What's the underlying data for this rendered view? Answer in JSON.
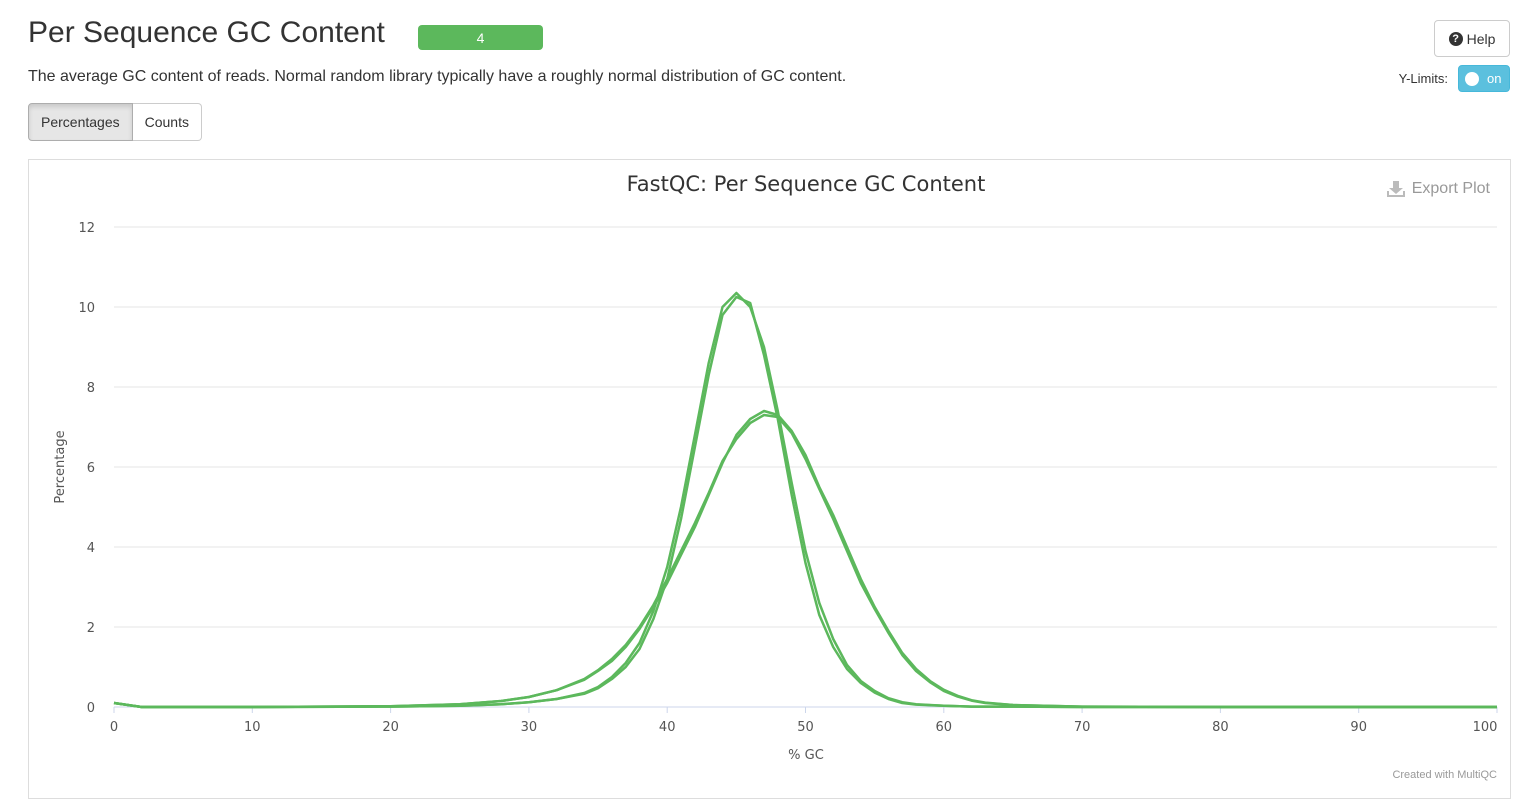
{
  "header": {
    "title": "Per Sequence GC Content",
    "badge": "4",
    "help_label": "Help",
    "description": "The average GC content of reads. Normal random library typically have a roughly normal distribution of GC content.",
    "ylimits_label": "Y-Limits:",
    "ylimits_toggle": "on"
  },
  "tabs": [
    {
      "label": "Percentages",
      "active": true
    },
    {
      "label": "Counts",
      "active": false
    }
  ],
  "plot": {
    "export_label": "Export Plot",
    "credit": "Created with MultiQC"
  },
  "colors": {
    "series": "#5cb85c",
    "badge": "#5cb85c",
    "toggle": "#5bc0de"
  },
  "chart_data": {
    "type": "line",
    "title": "FastQC: Per Sequence GC Content",
    "xlabel": "% GC",
    "ylabel": "Percentage",
    "xlim": [
      0,
      100
    ],
    "ylim": [
      0,
      12
    ],
    "xticks": [
      0,
      10,
      20,
      30,
      40,
      50,
      60,
      70,
      80,
      90,
      100
    ],
    "yticks": [
      0,
      2,
      4,
      6,
      8,
      10,
      12
    ],
    "grid": true,
    "legend": "none",
    "series": [
      {
        "x": [
          0,
          2,
          10,
          20,
          25,
          28,
          30,
          32,
          34,
          35,
          36,
          37,
          38,
          39,
          40,
          41,
          42,
          43,
          44,
          45,
          46,
          47,
          48,
          49,
          50,
          51,
          52,
          53,
          54,
          55,
          56,
          57,
          58,
          60,
          62,
          65,
          70,
          80,
          100
        ],
        "y": [
          0.1,
          0,
          0,
          0.01,
          0.03,
          0.07,
          0.12,
          0.2,
          0.35,
          0.5,
          0.75,
          1.1,
          1.6,
          2.4,
          3.5,
          5.0,
          6.8,
          8.6,
          10.0,
          10.35,
          10.0,
          9.0,
          7.4,
          5.6,
          3.9,
          2.6,
          1.7,
          1.05,
          0.65,
          0.4,
          0.22,
          0.12,
          0.07,
          0.03,
          0.01,
          0.01,
          0,
          0,
          0
        ]
      },
      {
        "x": [
          0,
          2,
          10,
          20,
          25,
          28,
          30,
          32,
          34,
          35,
          36,
          37,
          38,
          39,
          40,
          41,
          42,
          43,
          44,
          45,
          46,
          47,
          48,
          49,
          50,
          51,
          52,
          53,
          54,
          55,
          56,
          57,
          58,
          60,
          62,
          65,
          70,
          80,
          100
        ],
        "y": [
          0.1,
          0,
          0,
          0.01,
          0.03,
          0.07,
          0.12,
          0.2,
          0.33,
          0.47,
          0.7,
          1.0,
          1.45,
          2.2,
          3.2,
          4.7,
          6.5,
          8.3,
          9.8,
          10.25,
          10.1,
          8.8,
          7.2,
          5.3,
          3.6,
          2.3,
          1.5,
          0.95,
          0.6,
          0.36,
          0.2,
          0.1,
          0.06,
          0.03,
          0.01,
          0.01,
          0,
          0,
          0
        ]
      },
      {
        "x": [
          0,
          2,
          10,
          20,
          25,
          28,
          30,
          32,
          34,
          35,
          36,
          37,
          38,
          39,
          40,
          41,
          42,
          43,
          44,
          45,
          46,
          47,
          48,
          49,
          50,
          51,
          52,
          53,
          54,
          55,
          56,
          57,
          58,
          59,
          60,
          61,
          62,
          63,
          65,
          70,
          80,
          100
        ],
        "y": [
          0.1,
          0,
          0,
          0.02,
          0.07,
          0.15,
          0.25,
          0.42,
          0.68,
          0.9,
          1.15,
          1.5,
          1.95,
          2.5,
          3.1,
          3.8,
          4.5,
          5.3,
          6.1,
          6.8,
          7.2,
          7.4,
          7.3,
          6.9,
          6.3,
          5.5,
          4.8,
          4.0,
          3.2,
          2.5,
          1.9,
          1.35,
          0.95,
          0.65,
          0.43,
          0.28,
          0.17,
          0.11,
          0.05,
          0.01,
          0,
          0
        ]
      },
      {
        "x": [
          0,
          2,
          10,
          20,
          25,
          28,
          30,
          32,
          34,
          35,
          36,
          37,
          38,
          39,
          40,
          41,
          42,
          43,
          44,
          45,
          46,
          47,
          48,
          49,
          50,
          51,
          52,
          53,
          54,
          55,
          56,
          57,
          58,
          59,
          60,
          61,
          62,
          63,
          65,
          70,
          80,
          100
        ],
        "y": [
          0.1,
          0,
          0,
          0.02,
          0.07,
          0.15,
          0.25,
          0.42,
          0.7,
          0.92,
          1.2,
          1.55,
          2.0,
          2.55,
          3.2,
          3.9,
          4.6,
          5.35,
          6.15,
          6.7,
          7.1,
          7.3,
          7.25,
          6.85,
          6.2,
          5.45,
          4.7,
          3.9,
          3.1,
          2.45,
          1.85,
          1.3,
          0.9,
          0.62,
          0.4,
          0.26,
          0.16,
          0.1,
          0.05,
          0.01,
          0,
          0
        ]
      }
    ]
  }
}
